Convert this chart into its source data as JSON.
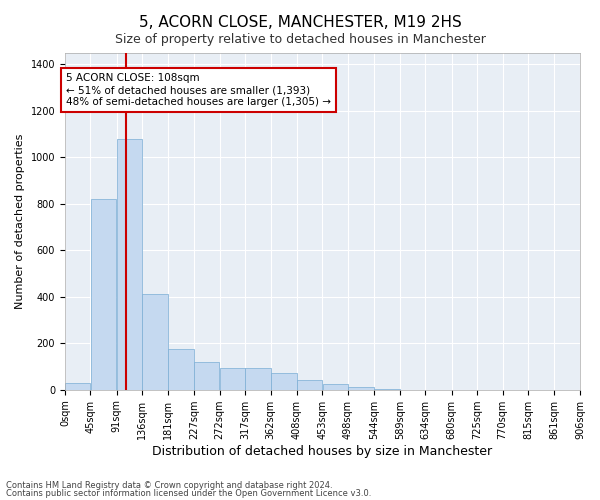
{
  "title": "5, ACORN CLOSE, MANCHESTER, M19 2HS",
  "subtitle": "Size of property relative to detached houses in Manchester",
  "xlabel": "Distribution of detached houses by size in Manchester",
  "ylabel": "Number of detached properties",
  "footer_line1": "Contains HM Land Registry data © Crown copyright and database right 2024.",
  "footer_line2": "Contains public sector information licensed under the Open Government Licence v3.0.",
  "bar_edges": [
    0,
    45,
    91,
    136,
    181,
    227,
    272,
    317,
    362,
    408,
    453,
    498,
    544,
    589,
    634,
    680,
    725,
    770,
    815,
    861,
    906
  ],
  "bar_heights": [
    30,
    820,
    1080,
    410,
    175,
    120,
    95,
    95,
    70,
    40,
    25,
    10,
    5,
    0,
    0,
    0,
    0,
    0,
    0,
    0
  ],
  "bar_color": "#c5d9f0",
  "bar_edge_color": "#7aadd4",
  "bar_linewidth": 0.5,
  "vline_x": 108,
  "vline_color": "#cc0000",
  "vline_linewidth": 1.5,
  "ylim": [
    0,
    1450
  ],
  "yticks": [
    0,
    200,
    400,
    600,
    800,
    1000,
    1200,
    1400
  ],
  "annotation_text": "5 ACORN CLOSE: 108sqm\n← 51% of detached houses are smaller (1,393)\n48% of semi-detached houses are larger (1,305) →",
  "annotation_box_color": "#ffffff",
  "annotation_box_edge_color": "#cc0000",
  "bg_color": "#ffffff",
  "plot_bg_color": "#e8eef5",
  "title_fontsize": 11,
  "subtitle_fontsize": 9,
  "xlabel_fontsize": 9,
  "ylabel_fontsize": 8,
  "tick_label_fontsize": 7,
  "annotation_fontsize": 7.5
}
